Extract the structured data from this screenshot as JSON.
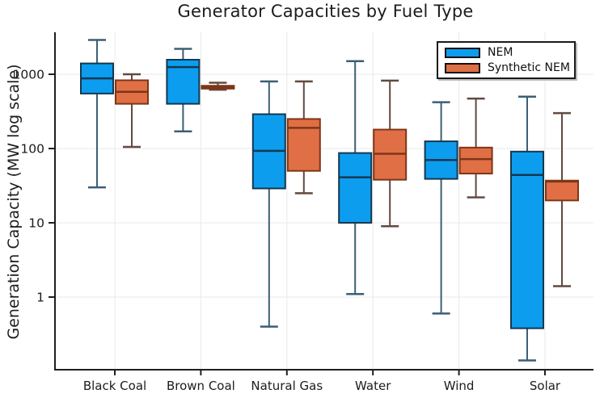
{
  "chart_data": {
    "type": "boxplot",
    "title": "Generator Capacities by Fuel Type",
    "ylabel": "Generation Capacity (MW log scale)",
    "yscale": "log",
    "ylim": [
      0.105,
      3700
    ],
    "grid": true,
    "legend_position": "top-right",
    "ytick_values": [
      1,
      10,
      100,
      1000
    ],
    "ytick_labels": [
      "1",
      "10",
      "100",
      "1000"
    ],
    "categories": [
      "Black Coal",
      "Brown Coal",
      "Natural Gas",
      "Water",
      "Wind",
      "Solar"
    ],
    "colors": {
      "nem_fill": "#0D9DEF",
      "nem_edge": "#14384F",
      "nem_whisker": "#3A5F75",
      "synthetic_fill": "#E06F45",
      "synthetic_edge": "#7E3617",
      "synthetic_whisker": "#614A40",
      "gridline": "#E9E9E9",
      "spine": "#1F1F1F",
      "text": "#1C1C1C"
    },
    "series": [
      {
        "name": "NEM",
        "fill": "#0D9DEF",
        "edge": "#14384F",
        "whisker": "#3A5F75",
        "boxes": [
          {
            "category": "Black Coal",
            "low": 30,
            "q1": 550,
            "median": 880,
            "q3": 1400,
            "high": 2900
          },
          {
            "category": "Brown Coal",
            "low": 170,
            "q1": 400,
            "median": 1250,
            "q3": 1570,
            "high": 2200
          },
          {
            "category": "Natural Gas",
            "low": 0.4,
            "q1": 29,
            "median": 93,
            "q3": 290,
            "high": 800
          },
          {
            "category": "Water",
            "low": 1.1,
            "q1": 10,
            "median": 41,
            "q3": 87,
            "high": 1500
          },
          {
            "category": "Wind",
            "low": 0.6,
            "q1": 39,
            "median": 70,
            "q3": 125,
            "high": 420
          },
          {
            "category": "Solar",
            "low": 0.14,
            "q1": 0.38,
            "median": 44,
            "q3": 91,
            "high": 500
          }
        ]
      },
      {
        "name": "Synthetic NEM",
        "fill": "#E06F45",
        "edge": "#7E3617",
        "whisker": "#614A40",
        "boxes": [
          {
            "category": "Black Coal",
            "low": 105,
            "q1": 400,
            "median": 580,
            "q3": 830,
            "high": 1000
          },
          {
            "category": "Brown Coal",
            "low": 620,
            "q1": 640,
            "median": 665,
            "q3": 700,
            "high": 770
          },
          {
            "category": "Natural Gas",
            "low": 25,
            "q1": 50,
            "median": 190,
            "q3": 250,
            "high": 800
          },
          {
            "category": "Water",
            "low": 9,
            "q1": 38,
            "median": 85,
            "q3": 180,
            "high": 820
          },
          {
            "category": "Wind",
            "low": 22,
            "q1": 46,
            "median": 72,
            "q3": 103,
            "high": 470
          },
          {
            "category": "Solar",
            "low": 1.4,
            "q1": 20,
            "median": 36,
            "q3": 37,
            "high": 300
          }
        ]
      }
    ]
  }
}
